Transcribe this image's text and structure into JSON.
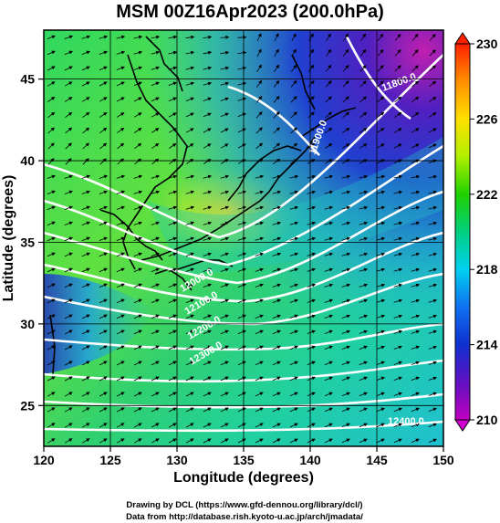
{
  "figure": {
    "title": "MSM 00Z16Apr2023 (200.0hPa)",
    "xlabel": "Longitude (degrees)",
    "ylabel": "Latitude  (degrees)",
    "credit_line1": "Drawing by DCL (https://www.gfd-dennou.org/library/dcl/)",
    "credit_line2": "Data from http://database.rish.kyoto-u.ac.jp/arch/jmadata/"
  },
  "axes": {
    "x_ticks": [
      "120",
      "125",
      "130",
      "135",
      "140",
      "145",
      "150"
    ],
    "y_ticks": [
      "25",
      "30",
      "35",
      "40",
      "45"
    ],
    "x_range": [
      120,
      150
    ],
    "y_range": [
      22.5,
      48
    ]
  },
  "colorbar": {
    "tick_labels": [
      "210",
      "214",
      "218",
      "222",
      "226",
      "230"
    ],
    "range": [
      210,
      230
    ],
    "colors": [
      "#c000c0",
      "#2020d0",
      "#00a0ff",
      "#00e0d0",
      "#00d050",
      "#20d000",
      "#c0f000",
      "#ffe000",
      "#ffa000",
      "#ff3000"
    ]
  },
  "contour_labels": [
    "11800.0",
    "11900.0",
    "12000.0",
    "12100.0",
    "12200.0",
    "12300.0",
    "12400.0"
  ],
  "colors": {
    "background": "#ffffff",
    "contour": "#ffffff",
    "vector": "#000000"
  }
}
